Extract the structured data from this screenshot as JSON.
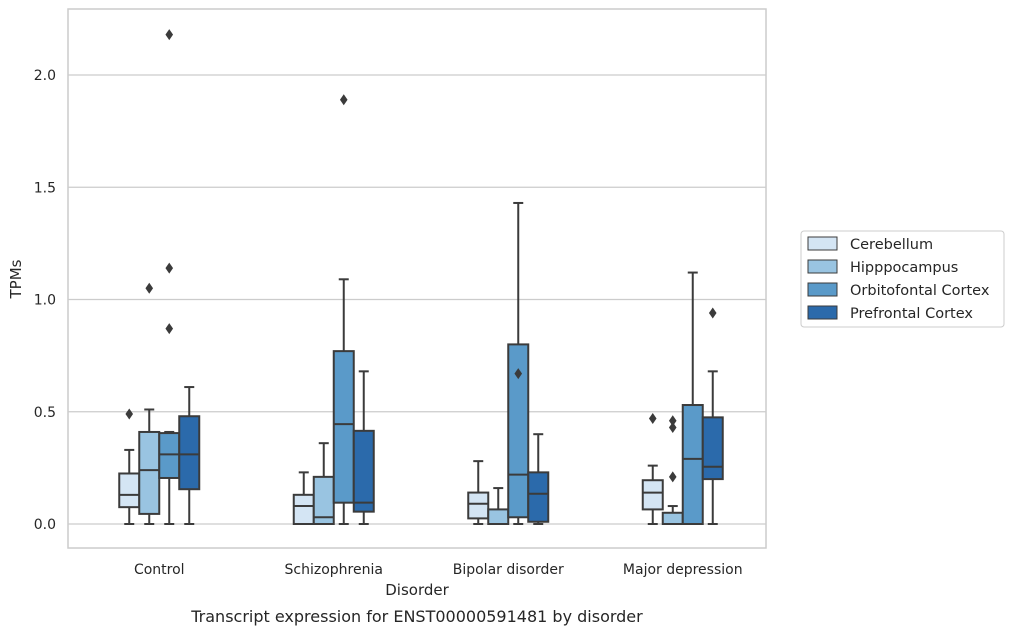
{
  "caption": "Transcript expression for ENST00000591481 by disorder",
  "chart_data": {
    "type": "boxplot",
    "xlabel": "Disorder",
    "ylabel": "TPMs",
    "ylim": [
      -0.1,
      2.3
    ],
    "yticks": [
      0.0,
      0.5,
      1.0,
      1.5,
      2.0
    ],
    "ytick_labels": [
      "0.0",
      "0.5",
      "1.0",
      "1.5",
      "2.0"
    ],
    "grid": "horizontal",
    "legend_position": "right",
    "categories": [
      "Control",
      "Schizophrenia",
      "Bipolar disorder",
      "Major depression"
    ],
    "series": [
      {
        "name": "Cerebellum",
        "color": "#d4e5f4",
        "boxes": [
          {
            "whislo": 0.0,
            "q1": 0.075,
            "med": 0.13,
            "q3": 0.225,
            "whishi": 0.33,
            "fliers": [
              0.49
            ]
          },
          {
            "whislo": 0.0,
            "q1": 0.0,
            "med": 0.08,
            "q3": 0.13,
            "whishi": 0.23,
            "fliers": []
          },
          {
            "whislo": 0.0,
            "q1": 0.025,
            "med": 0.09,
            "q3": 0.14,
            "whishi": 0.28,
            "fliers": []
          },
          {
            "whislo": 0.0,
            "q1": 0.065,
            "med": 0.14,
            "q3": 0.195,
            "whishi": 0.26,
            "fliers": [
              0.47
            ]
          }
        ]
      },
      {
        "name": "Hipppocampus",
        "color": "#99c4e1",
        "boxes": [
          {
            "whislo": 0.0,
            "q1": 0.045,
            "med": 0.24,
            "q3": 0.41,
            "whishi": 0.51,
            "fliers": [
              1.05
            ]
          },
          {
            "whislo": 0.0,
            "q1": 0.0,
            "med": 0.03,
            "q3": 0.21,
            "whishi": 0.36,
            "fliers": []
          },
          {
            "whislo": 0.0,
            "q1": 0.0,
            "med": 0.0,
            "q3": 0.065,
            "whishi": 0.16,
            "fliers": []
          },
          {
            "whislo": 0.0,
            "q1": 0.0,
            "med": 0.0,
            "q3": 0.05,
            "whishi": 0.08,
            "fliers": [
              0.21,
              0.43,
              0.46
            ]
          }
        ]
      },
      {
        "name": "Orbitofontal Cortex",
        "color": "#5a9ac9",
        "boxes": [
          {
            "whislo": 0.0,
            "q1": 0.205,
            "med": 0.31,
            "q3": 0.405,
            "whishi": 0.41,
            "fliers": [
              0.87,
              1.14,
              2.18
            ]
          },
          {
            "whislo": 0.0,
            "q1": 0.095,
            "med": 0.445,
            "q3": 0.77,
            "whishi": 1.09,
            "fliers": [
              1.89
            ]
          },
          {
            "whislo": 0.0,
            "q1": 0.03,
            "med": 0.22,
            "q3": 0.8,
            "whishi": 1.43,
            "fliers": [
              0.67
            ]
          },
          {
            "whislo": 0.0,
            "q1": 0.0,
            "med": 0.29,
            "q3": 0.53,
            "whishi": 1.12,
            "fliers": []
          }
        ]
      },
      {
        "name": "Prefrontal Cortex",
        "color": "#2b6aab",
        "boxes": [
          {
            "whislo": 0.0,
            "q1": 0.155,
            "med": 0.31,
            "q3": 0.48,
            "whishi": 0.61,
            "fliers": []
          },
          {
            "whislo": 0.0,
            "q1": 0.055,
            "med": 0.095,
            "q3": 0.415,
            "whishi": 0.68,
            "fliers": []
          },
          {
            "whislo": 0.0,
            "q1": 0.01,
            "med": 0.135,
            "q3": 0.23,
            "whishi": 0.4,
            "fliers": []
          },
          {
            "whislo": 0.0,
            "q1": 0.2,
            "med": 0.255,
            "q3": 0.475,
            "whishi": 0.68,
            "fliers": [
              0.94
            ]
          }
        ]
      }
    ]
  },
  "colors": {
    "grid": "#cccccc",
    "frame": "#cccccc",
    "box_edge": "#3b3b3b",
    "text": "#262626"
  }
}
